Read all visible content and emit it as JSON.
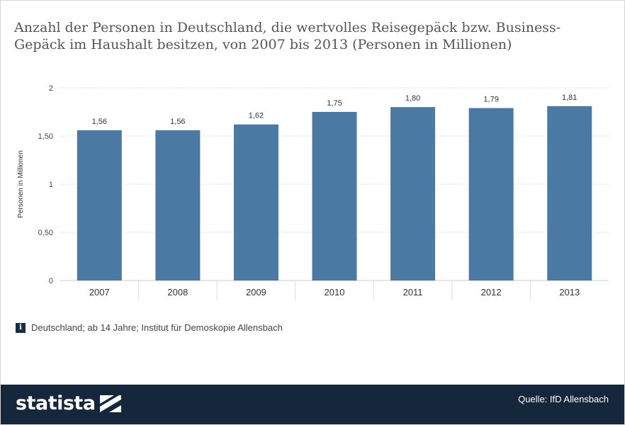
{
  "title": "Anzahl der Personen in Deutschland, die wertvolles Reisegepäck bzw. Business-Gepäck im Haushalt besitzen, von 2007 bis 2013 (Personen in Millionen)",
  "info_note": "Deutschland; ab 14 Jahre; Institut für Demoskopie Allensbach",
  "info_icon_char": "i",
  "logo_text": "statista",
  "source_text": "Quelle: IfD Allensbach",
  "colors": {
    "bar": "#4a7aa4",
    "footer": "#15273b",
    "grid": "#dddddd"
  },
  "chart_data": {
    "type": "bar",
    "title": "Anzahl der Personen in Deutschland, die wertvolles Reisegepäck bzw. Business-Gepäck im Haushalt besitzen, von 2007 bis 2013 (Personen in Millionen)",
    "xlabel": "",
    "ylabel": "Personen in Millionen",
    "categories": [
      "2007",
      "2008",
      "2009",
      "2010",
      "2011",
      "2012",
      "2013"
    ],
    "values": [
      1.56,
      1.56,
      1.62,
      1.75,
      1.8,
      1.79,
      1.81
    ],
    "value_labels": [
      "1,56",
      "1,56",
      "1,62",
      "1,75",
      "1,80",
      "1,79",
      "1,81"
    ],
    "ylim": [
      0,
      2
    ],
    "yticks": [
      0,
      0.5,
      1,
      1.5,
      2
    ],
    "ytick_labels": [
      "0",
      "0,50",
      "1",
      "1,50",
      "2"
    ],
    "grid": true,
    "legend": "none"
  }
}
